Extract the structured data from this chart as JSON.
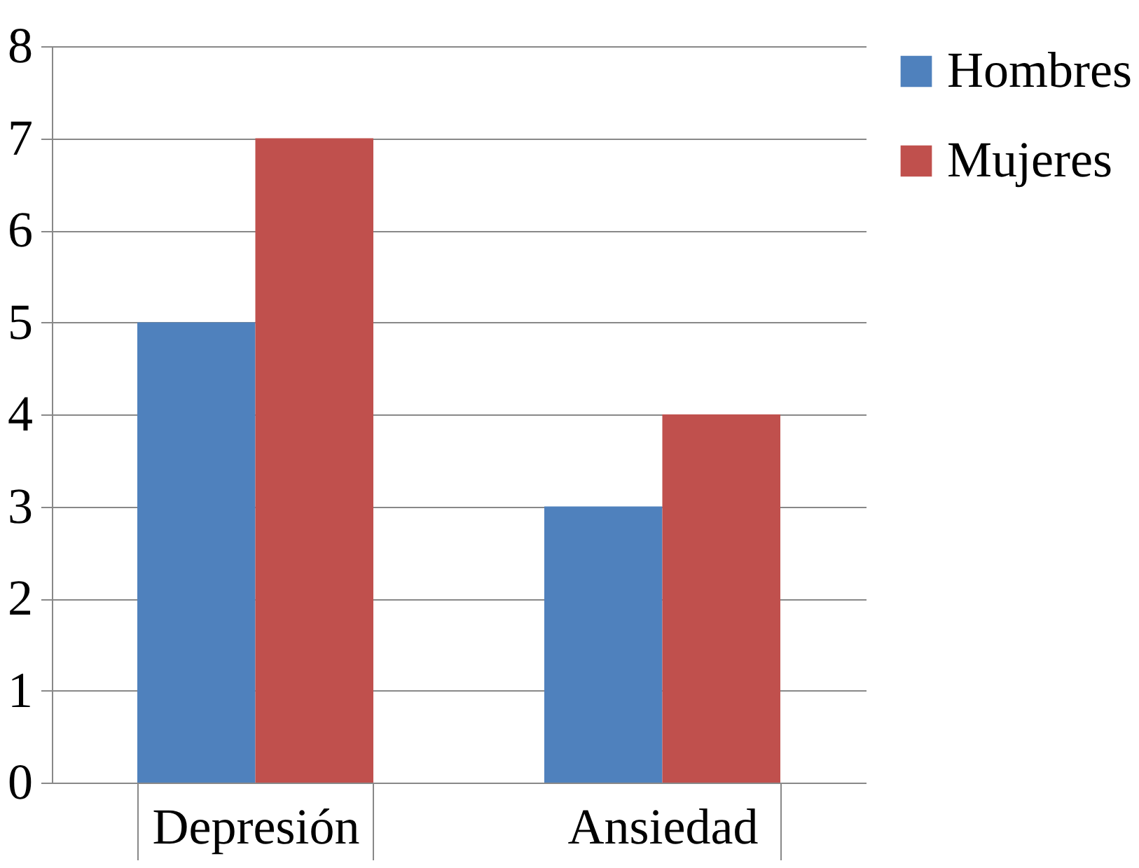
{
  "chart_data": {
    "type": "bar",
    "categories": [
      "Depresión",
      "Ansiedad"
    ],
    "series": [
      {
        "name": "Hombres",
        "color": "#4f81bd",
        "values": [
          5,
          3
        ]
      },
      {
        "name": "Mujeres",
        "color": "#c0504d",
        "values": [
          7,
          4
        ]
      }
    ],
    "ylim": [
      0,
      8
    ],
    "yticks": [
      0,
      1,
      2,
      3,
      4,
      5,
      6,
      7,
      8
    ],
    "grid": "y",
    "legend": "right"
  }
}
